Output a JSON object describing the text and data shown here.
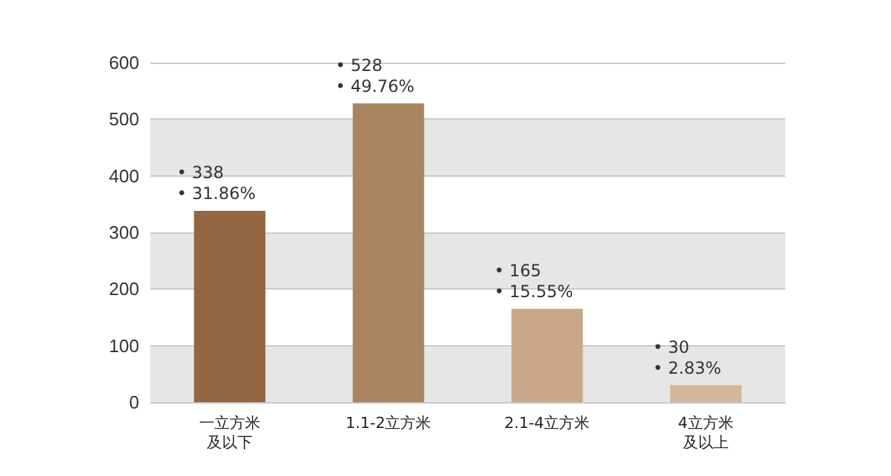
{
  "chart_data": {
    "type": "bar",
    "categories": [
      "一立方米及以下",
      "1.1-2立方米",
      "2.1-4立方米",
      "4立方米及以上"
    ],
    "values": [
      338,
      528,
      165,
      30
    ],
    "colors": [
      "#946641",
      "#a98461",
      "#c8a888",
      "#d4b69a"
    ],
    "value_labels": [
      "• 338\n• 31.86%",
      "• 528\n• 49.76%",
      "• 165\n• 15.55%",
      "• 30\n• 2.83%"
    ],
    "ylim": [
      0,
      600
    ],
    "yticks": [
      0,
      100,
      200,
      300,
      400,
      500,
      600
    ],
    "grid": "y"
  }
}
